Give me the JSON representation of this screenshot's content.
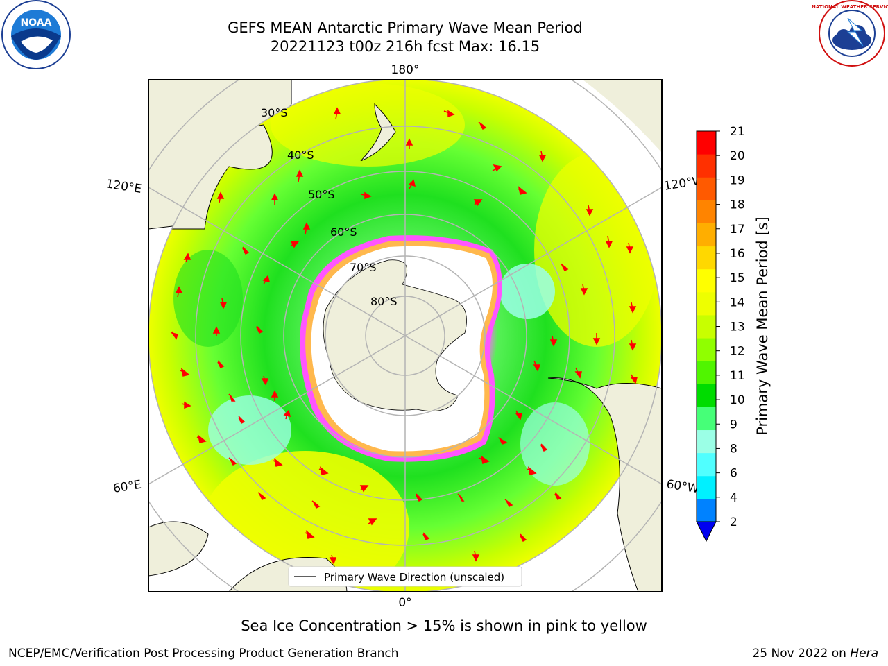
{
  "header": {
    "title_line1": "GEFS MEAN Antarctic Primary Wave Mean Period",
    "title_line2": "20221123 t00z 216h fcst   Max: 16.15",
    "left_logo_text": "NOAA",
    "right_logo_text": "NATIONAL WEATHER SERVICE"
  },
  "map": {
    "longitude_labels": {
      "top": "180°",
      "bottom": "0°",
      "left_upper": "120°E",
      "left_lower": "60°E",
      "right_upper": "120°W",
      "right_lower": "60°W"
    },
    "latitude_labels": [
      "30°S",
      "40°S",
      "50°S",
      "60°S",
      "70°S",
      "80°S"
    ],
    "legend_label": "Primary Wave Direction (unscaled)"
  },
  "colorbar": {
    "label": "Primary Wave Mean Period [s]",
    "ticks": [
      "21",
      "20",
      "19",
      "18",
      "17",
      "16",
      "15",
      "14",
      "13",
      "12",
      "11",
      "10",
      "9",
      "8",
      "6",
      "4",
      "2"
    ],
    "colors": [
      "#ff0000",
      "#ff3000",
      "#ff5a00",
      "#ff8400",
      "#ffae00",
      "#ffd800",
      "#ffff00",
      "#eeff00",
      "#c8ff00",
      "#90ff00",
      "#50f500",
      "#00dc00",
      "#46ff78",
      "#9bffe6",
      "#50ffff",
      "#00f0ff",
      "#0082ff"
    ],
    "extend_color": "#0000f0"
  },
  "footer": {
    "sea_ice_note": "Sea Ice Concentration > 15% is shown in pink to yellow",
    "credit": "NCEP/EMC/Verification Post Processing Product Generation Branch",
    "date_prefix": "25 Nov 2022 on ",
    "date_machine": "Hera"
  }
}
